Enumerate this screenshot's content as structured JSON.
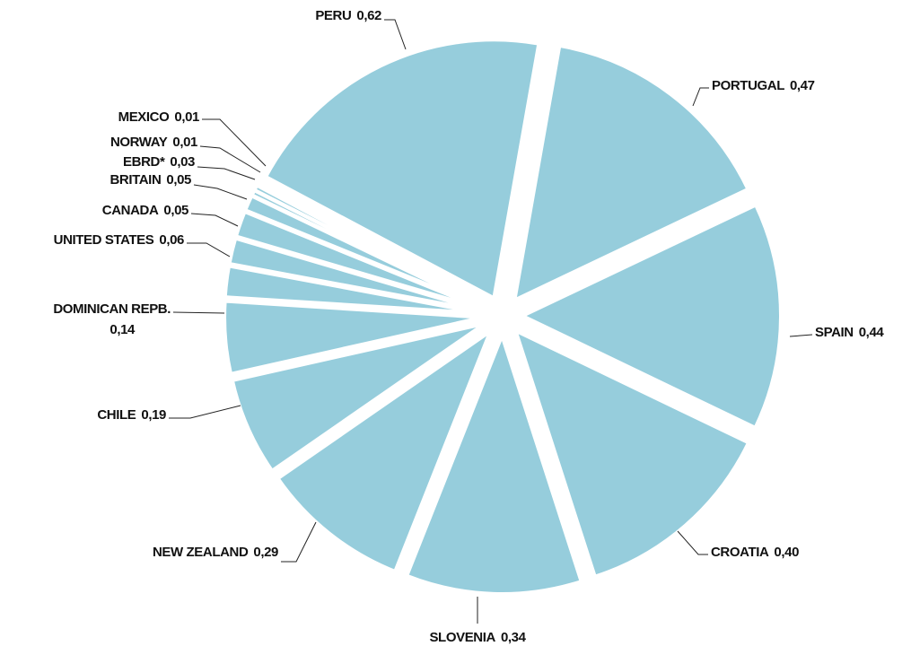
{
  "chart_data": {
    "type": "pie",
    "categories": [
      "PERU",
      "PORTUGAL",
      "SPAIN",
      "CROATIA",
      "SLOVENIA",
      "NEW ZEALAND",
      "CHILE",
      "DOMINICAN REPB.",
      "UNITED STATES",
      "CANADA",
      "BRITAIN",
      "EBRD*",
      "NORWAY",
      "MEXICO"
    ],
    "values": [
      0.62,
      0.47,
      0.44,
      0.4,
      0.34,
      0.29,
      0.19,
      0.14,
      0.06,
      0.05,
      0.05,
      0.03,
      0.01,
      0.01
    ],
    "value_labels": [
      "0,62",
      "0,47",
      "0,44",
      "0,40",
      "0,34",
      "0,29",
      "0,19",
      "0,14",
      "0,06",
      "0,05",
      "0,05",
      "0,03",
      "0,01",
      "0,01"
    ],
    "color": "#96cddc"
  }
}
